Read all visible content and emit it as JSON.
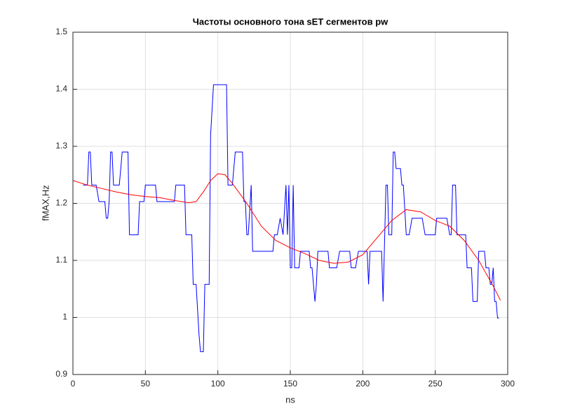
{
  "chart_data": {
    "type": "line",
    "title": "Частоты основного тона sET сегментов pw",
    "xlabel": "ns",
    "ylabel": "fMAX,Hz",
    "xlim": [
      0,
      300
    ],
    "ylim": [
      0.9,
      1.5
    ],
    "xticks": [
      0,
      50,
      100,
      150,
      200,
      250,
      300
    ],
    "yticks": [
      0.9,
      1,
      1.1,
      1.2,
      1.3,
      1.4,
      1.5
    ],
    "grid": true,
    "series": [
      {
        "color": "#0000ff",
        "x": [
          7,
          10,
          11,
          12,
          13,
          16,
          18,
          22,
          23,
          24,
          25,
          26,
          27,
          28,
          32,
          34,
          38,
          39,
          45,
          46,
          49,
          50,
          57,
          58,
          70,
          71,
          77,
          78,
          82,
          83,
          85,
          87,
          88,
          90,
          91,
          94,
          95,
          97,
          106,
          107,
          110,
          112,
          117,
          118,
          119,
          120,
          121,
          123,
          124,
          138,
          139,
          141,
          143,
          145,
          147,
          148,
          149,
          150,
          151,
          152,
          153,
          156,
          157,
          163,
          164,
          165,
          167,
          168,
          169,
          176,
          177,
          182,
          184,
          191,
          192,
          195,
          197,
          203,
          204,
          205,
          213,
          214,
          216,
          217,
          218,
          220,
          221,
          222,
          223,
          226,
          227,
          228,
          230,
          232,
          234,
          241,
          243,
          250,
          251,
          258,
          260,
          261,
          262,
          264,
          265,
          271,
          272,
          275,
          276,
          279,
          280,
          284,
          285,
          287,
          288,
          289,
          290,
          291,
          292,
          293,
          294
        ],
        "values": [
          1.232,
          1.232,
          1.29,
          1.29,
          1.232,
          1.232,
          1.203,
          1.203,
          1.174,
          1.174,
          1.203,
          1.29,
          1.29,
          1.232,
          1.232,
          1.29,
          1.29,
          1.145,
          1.145,
          1.203,
          1.203,
          1.232,
          1.232,
          1.203,
          1.203,
          1.232,
          1.232,
          1.145,
          1.145,
          1.058,
          1.058,
          0.97,
          0.94,
          0.94,
          1.058,
          1.058,
          1.32,
          1.408,
          1.408,
          1.232,
          1.232,
          1.29,
          1.29,
          1.203,
          1.203,
          1.145,
          1.145,
          1.232,
          1.116,
          1.116,
          1.145,
          1.145,
          1.174,
          1.145,
          1.232,
          1.145,
          1.232,
          1.087,
          1.087,
          1.232,
          1.087,
          1.087,
          1.116,
          1.116,
          1.087,
          1.087,
          1.028,
          1.058,
          1.116,
          1.116,
          1.087,
          1.087,
          1.116,
          1.116,
          1.087,
          1.087,
          1.116,
          1.116,
          1.058,
          1.116,
          1.116,
          1.028,
          1.232,
          1.232,
          1.145,
          1.145,
          1.29,
          1.29,
          1.261,
          1.261,
          1.232,
          1.232,
          1.145,
          1.145,
          1.174,
          1.174,
          1.145,
          1.145,
          1.174,
          1.174,
          1.145,
          1.145,
          1.232,
          1.232,
          1.145,
          1.145,
          1.087,
          1.087,
          1.028,
          1.028,
          1.116,
          1.116,
          1.087,
          1.087,
          1.058,
          1.058,
          1.087,
          1.028,
          1.028,
          0.999,
          0.999
        ]
      },
      {
        "color": "#ff0000",
        "x": [
          0,
          10,
          20,
          30,
          40,
          50,
          60,
          70,
          80,
          85,
          90,
          95,
          100,
          105,
          110,
          120,
          130,
          140,
          150,
          160,
          170,
          180,
          190,
          200,
          210,
          220,
          230,
          240,
          250,
          260,
          270,
          280,
          290,
          295
        ],
        "values": [
          1.24,
          1.232,
          1.226,
          1.22,
          1.215,
          1.212,
          1.21,
          1.205,
          1.201,
          1.203,
          1.22,
          1.24,
          1.252,
          1.25,
          1.235,
          1.2,
          1.16,
          1.135,
          1.122,
          1.112,
          1.1,
          1.095,
          1.097,
          1.11,
          1.14,
          1.17,
          1.189,
          1.185,
          1.17,
          1.16,
          1.135,
          1.1,
          1.055,
          1.03
        ]
      }
    ]
  }
}
